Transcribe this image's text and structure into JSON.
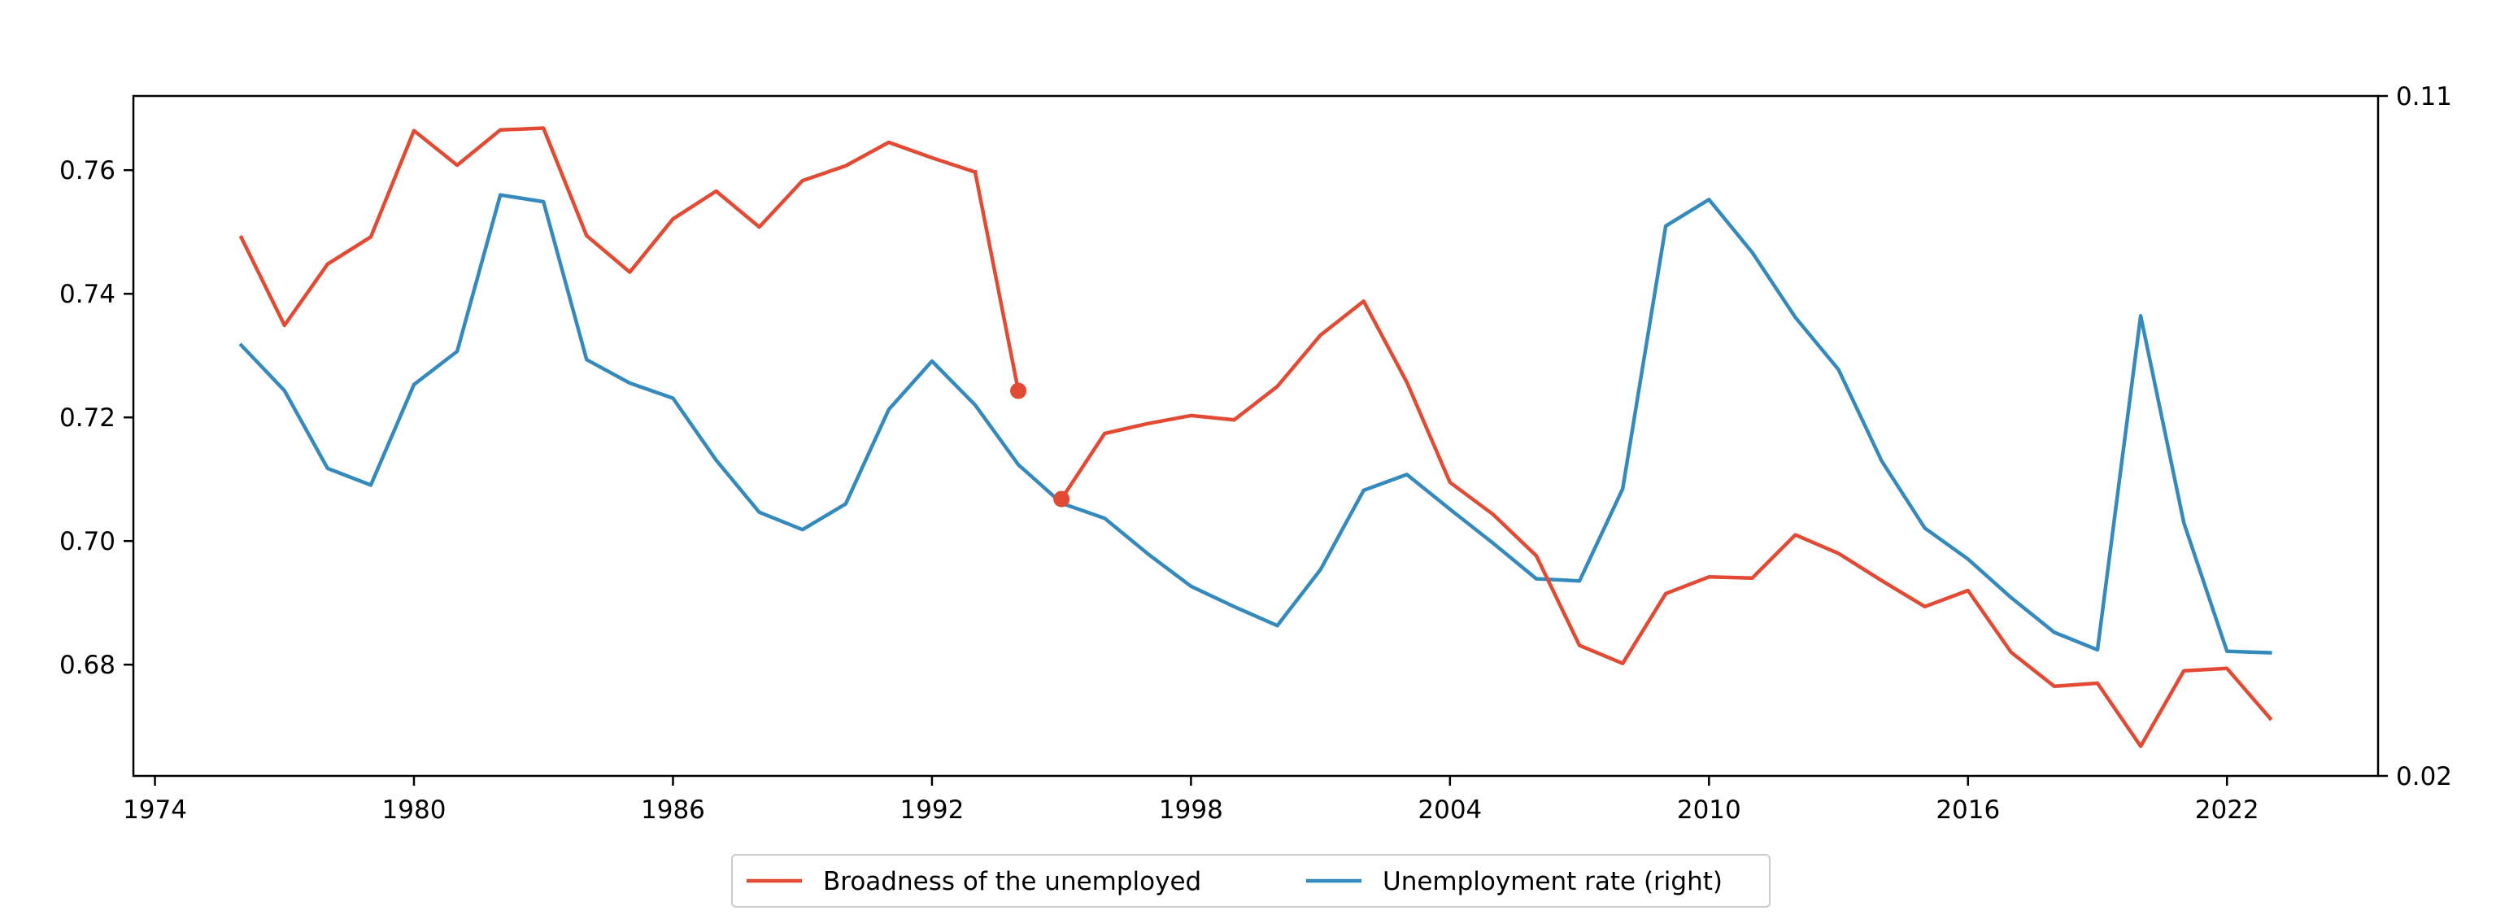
{
  "chart_data": {
    "type": "line",
    "title": "",
    "xlabel": "",
    "ylabel": "",
    "ylabel_right": "",
    "x_ticks": [
      "1974",
      "1980",
      "1986",
      "1992",
      "1998",
      "2004",
      "2010",
      "2016",
      "2022"
    ],
    "y_left_ticks": [
      "0.68",
      "0.70",
      "0.72",
      "0.74",
      "0.76"
    ],
    "y_right_ticks": [
      "0.02",
      "0.11"
    ],
    "xlim": [
      1973.5,
      2025.5
    ],
    "ylim_left": [
      0.662,
      0.772
    ],
    "ylim_right": [
      0.02,
      0.11
    ],
    "grid": false,
    "legend_position": "bottom-center",
    "colors": {
      "broadness": "#e24a33",
      "unemployment": "#348abd"
    },
    "series": [
      {
        "name": "Broadness of the unemployed",
        "axis": "left",
        "color": "#e24a33",
        "segments": [
          {
            "x": [
              1976,
              1977,
              1978,
              1979,
              1980,
              1981,
              1982,
              1983,
              1984,
              1985,
              1986,
              1987,
              1988,
              1989,
              1990,
              1991,
              1992,
              1993
            ],
            "y": [
              0.7491,
              0.7349,
              0.7448,
              0.7492,
              0.7664,
              0.7608,
              0.7665,
              0.7668,
              0.7494,
              0.7435,
              0.7521,
              0.7566,
              0.7508,
              0.7583,
              0.7607,
              0.7645,
              0.762,
              0.7597
            ]
          },
          {
            "x": [
              1993,
              1994
            ],
            "y": [
              0.7597,
              0.7243
            ]
          },
          {
            "x": [
              1995,
              1996,
              1997,
              1998,
              1999,
              2000,
              2001,
              2002,
              2003,
              2004,
              2005,
              2006,
              2007,
              2008,
              2009,
              2010,
              2011,
              2012,
              2013,
              2014,
              2015,
              2016,
              2017,
              2018,
              2019,
              2020,
              2021,
              2022,
              2023
            ],
            "y": [
              0.7068,
              0.7174,
              0.719,
              0.7203,
              0.7196,
              0.725,
              0.7333,
              0.7388,
              0.7257,
              0.7095,
              0.7043,
              0.6976,
              0.6831,
              0.6802,
              0.6915,
              0.6942,
              0.694,
              0.701,
              0.698,
              0.6936,
              0.6894,
              0.692,
              0.682,
              0.6765,
              0.677,
              0.6668,
              0.679,
              0.6794,
              0.6713
            ]
          }
        ],
        "markers": [
          {
            "x": 1994,
            "y": 0.7243
          },
          {
            "x": 1995,
            "y": 0.7068
          }
        ]
      },
      {
        "name": "Unemployment rate (right)",
        "axis": "right",
        "color": "#348abd",
        "x": [
          1976,
          1977,
          1978,
          1979,
          1980,
          1981,
          1982,
          1983,
          1984,
          1985,
          1986,
          1987,
          1988,
          1989,
          1990,
          1991,
          1992,
          1993,
          1994,
          1995,
          1996,
          1997,
          1998,
          1999,
          2000,
          2001,
          2002,
          2003,
          2004,
          2005,
          2006,
          2007,
          2008,
          2009,
          2010,
          2011,
          2012,
          2013,
          2014,
          2015,
          2016,
          2017,
          2018,
          2019,
          2020,
          2021,
          2022,
          2023
        ],
        "y": [
          0.077,
          0.071,
          0.0607,
          0.0585,
          0.0718,
          0.0762,
          0.0969,
          0.096,
          0.0751,
          0.072,
          0.07,
          0.0618,
          0.0549,
          0.0526,
          0.056,
          0.0685,
          0.0749,
          0.0691,
          0.0612,
          0.0561,
          0.0541,
          0.0494,
          0.0451,
          0.0424,
          0.0399,
          0.0473,
          0.0578,
          0.0599,
          0.0553,
          0.0508,
          0.0461,
          0.0458,
          0.058,
          0.0928,
          0.0963,
          0.0893,
          0.0807,
          0.0738,
          0.0617,
          0.0528,
          0.0487,
          0.0436,
          0.039,
          0.0367,
          0.0809,
          0.0535,
          0.0365,
          0.0363
        ]
      }
    ]
  }
}
